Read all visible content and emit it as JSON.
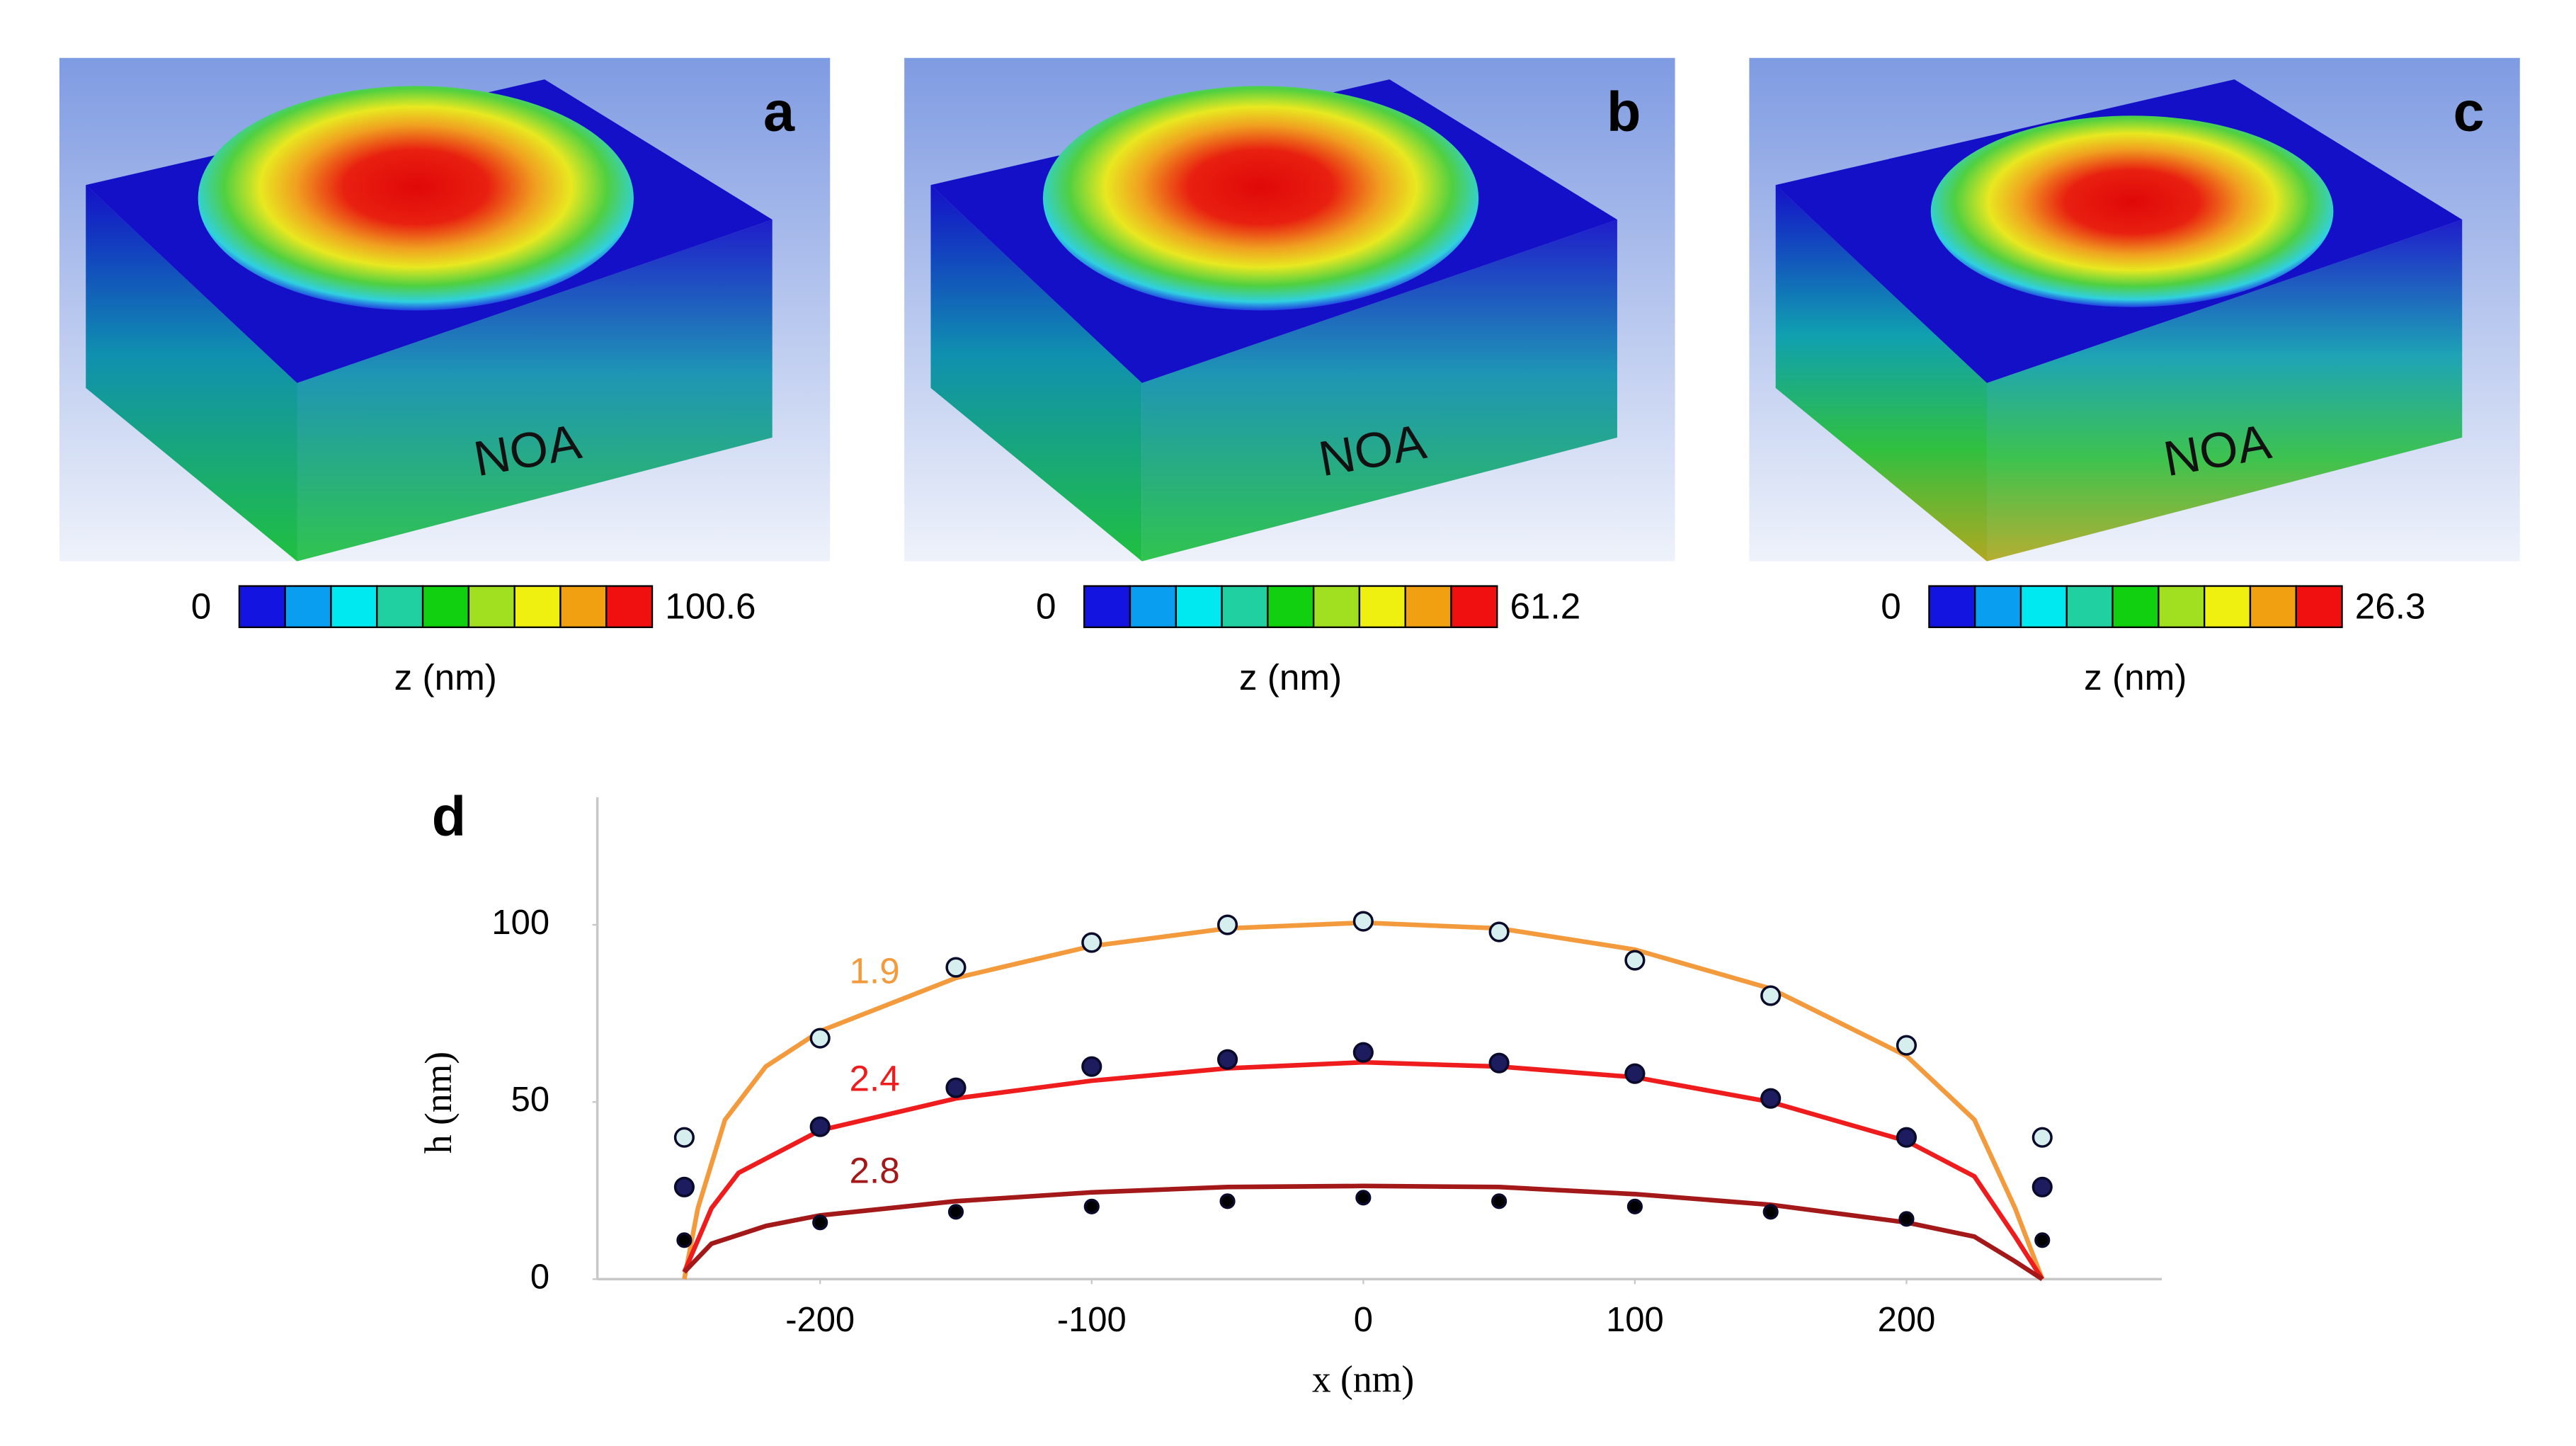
{
  "panels": [
    {
      "label": "a",
      "text": "NOA",
      "cmin": 0,
      "cmax": 100.6,
      "zlabel": "z (nm)"
    },
    {
      "label": "b",
      "text": "NOA",
      "cmin": 0,
      "cmax": 61.2,
      "zlabel": "z (nm)"
    },
    {
      "label": "c",
      "text": "NOA",
      "cmin": 0,
      "cmax": 26.3,
      "zlabel": "z (nm)"
    }
  ],
  "chart_data": {
    "type": "line",
    "label": "d",
    "xlabel": "x (nm)",
    "ylabel": "h (nm)",
    "xlim": [
      -282,
      294
    ],
    "ylim": [
      0,
      136
    ],
    "xticks": [
      -200,
      -100,
      0,
      100,
      200
    ],
    "yticks": [
      0,
      50,
      100
    ],
    "series": [
      {
        "name": "1.9",
        "color": "#f39a3c",
        "x": [
          -250,
          -245,
          -235,
          -220,
          -200,
          -150,
          -100,
          -50,
          0,
          50,
          100,
          150,
          200,
          225,
          240,
          250
        ],
        "values": [
          0,
          20,
          45,
          60,
          70,
          85,
          94,
          99,
          100.6,
          99,
          93,
          82,
          63,
          45,
          20,
          0
        ]
      },
      {
        "name": "2.4",
        "color": "#ee1c1c",
        "x": [
          -250,
          -240,
          -230,
          -200,
          -150,
          -100,
          -50,
          0,
          50,
          100,
          150,
          200,
          225,
          240,
          250
        ],
        "values": [
          2,
          20,
          30,
          42,
          51,
          56,
          59.5,
          61.2,
          60,
          57,
          50,
          39,
          29,
          12,
          0
        ]
      },
      {
        "name": "2.8",
        "color": "#a31818",
        "x": [
          -250,
          -240,
          -220,
          -200,
          -150,
          -100,
          -50,
          0,
          50,
          100,
          150,
          200,
          225,
          240,
          250
        ],
        "values": [
          2,
          10,
          15,
          18,
          22,
          24.5,
          26,
          26.3,
          26,
          24,
          21,
          16,
          12,
          5,
          0
        ]
      },
      {
        "type": "scatter",
        "color": "#d6eeee",
        "x": [
          -250,
          -200,
          -150,
          -100,
          -50,
          0,
          50,
          100,
          150,
          200,
          250
        ],
        "values": [
          40,
          68,
          88,
          95,
          100,
          101,
          98,
          90,
          80,
          66,
          40
        ]
      },
      {
        "type": "scatter",
        "color": "#1c1c5e",
        "x": [
          -250,
          -200,
          -150,
          -100,
          -50,
          0,
          50,
          100,
          150,
          200,
          250
        ],
        "values": [
          26,
          43,
          54,
          60,
          62,
          64,
          61,
          58,
          51,
          40,
          26
        ]
      },
      {
        "type": "scatter",
        "color": "#000000",
        "x": [
          -250,
          -200,
          -150,
          -100,
          -50,
          0,
          50,
          100,
          150,
          200,
          250
        ],
        "values": [
          11,
          16,
          19,
          20.5,
          22,
          23,
          22,
          20.5,
          19,
          17,
          11
        ]
      }
    ]
  }
}
